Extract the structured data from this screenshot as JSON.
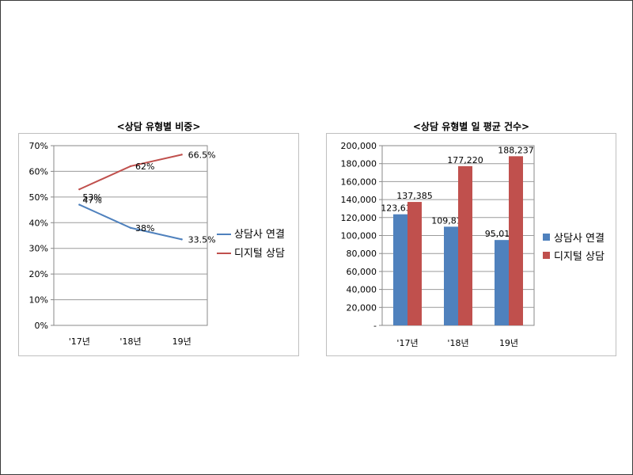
{
  "chart_data": [
    {
      "type": "line",
      "title": "<상담 유형별 비중>",
      "categories": [
        "'17년",
        "'18년",
        "19년"
      ],
      "y_ticks": [
        "0%",
        "10%",
        "20%",
        "30%",
        "40%",
        "50%",
        "60%",
        "70%"
      ],
      "ylim": [
        0,
        70
      ],
      "grid": true,
      "legend": "right",
      "series": [
        {
          "name": "상담사 연결",
          "color": "#4f81bd",
          "values": [
            47,
            38,
            33.5
          ],
          "labels": [
            "47%",
            "38%",
            "33.5%"
          ]
        },
        {
          "name": "디지털 상담",
          "color": "#c0504d",
          "values": [
            53,
            62,
            66.5
          ],
          "labels": [
            "53%",
            "62%",
            "66.5%"
          ]
        }
      ]
    },
    {
      "type": "bar",
      "title": "<상담 유형별 일 평균 건수>",
      "categories": [
        "'17년",
        "'18년",
        "19년"
      ],
      "y_ticks": [
        "-",
        "20,000",
        "40,000",
        "60,000",
        "80,000",
        "100,000",
        "120,000",
        "140,000",
        "160,000",
        "180,000",
        "200,000"
      ],
      "ylim": [
        0,
        200000
      ],
      "grid": true,
      "legend": "right",
      "series": [
        {
          "name": "상담사 연결",
          "color": "#4f81bd",
          "values": [
            123631,
            109818,
            95012
          ],
          "labels": [
            "123,631",
            "109,818",
            "95,012"
          ]
        },
        {
          "name": "디지털 상담",
          "color": "#c0504d",
          "values": [
            137385,
            177220,
            188237
          ],
          "labels": [
            "137,385",
            "177,220",
            "188,237"
          ]
        }
      ]
    }
  ]
}
